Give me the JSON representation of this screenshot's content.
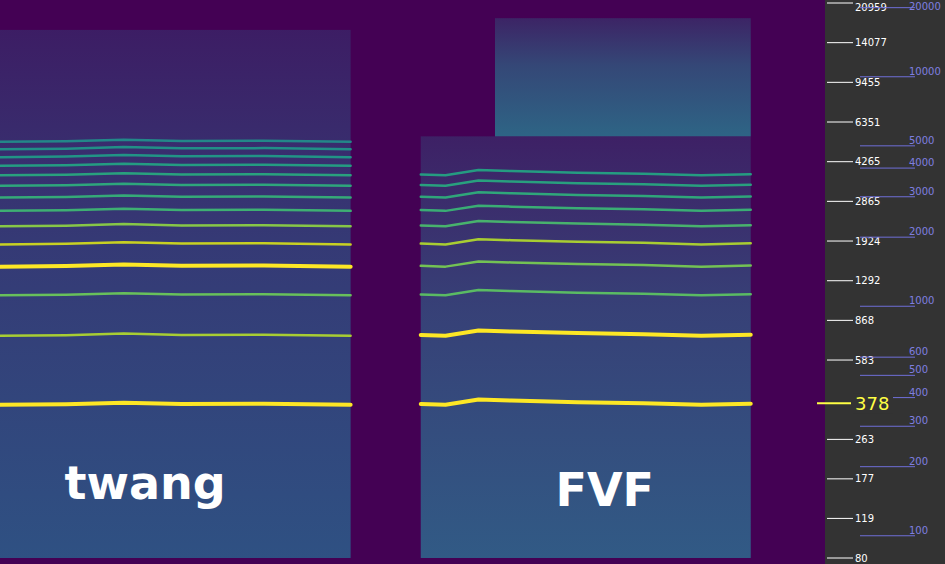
{
  "chart_data": {
    "type": "spectrogram",
    "log": "y",
    "tick_labels": "y",
    "xlim": [
      0,
      100
    ],
    "ylim": [
      80,
      20959
    ],
    "yticks": [
      80,
      119,
      177,
      263,
      583,
      868,
      1292,
      1924,
      2865,
      4265,
      6351,
      9455,
      14077,
      20959
    ],
    "y2lim": [
      80,
      20959
    ],
    "y2ticks": [
      100,
      200,
      300,
      400,
      500,
      600,
      1000,
      2000,
      3000,
      4000,
      5000,
      10000,
      20000
    ],
    "regions": [
      {
        "x": [
          0,
          42.5
        ],
        "y": [
          80,
          16000
        ],
        "color": "#2b5f8b"
      },
      {
        "x": [
          51,
          91
        ],
        "y": [
          80,
          5500
        ],
        "color": "#2e6a8e"
      },
      {
        "x": [
          60,
          91
        ],
        "y": [
          5500,
          18000
        ],
        "color": "#2a768e"
      }
    ],
    "series": [
      {
        "x": [
          0,
          8,
          15,
          22,
          32,
          42.5
        ],
        "values": [
          372,
          374,
          380,
          375,
          376,
          372
        ],
        "color": "#fde725"
      },
      {
        "x": [
          0,
          8,
          15,
          22,
          32,
          42.5
        ],
        "values": [
          744,
          748,
          760,
          750,
          752,
          744
        ],
        "color": "#b5de2b"
      },
      {
        "x": [
          0,
          8,
          15,
          22,
          32,
          42.5
        ],
        "values": [
          1116,
          1122,
          1140,
          1125,
          1128,
          1116
        ],
        "color": "#6ece58"
      },
      {
        "x": [
          0,
          8,
          15,
          22,
          32,
          42.5
        ],
        "values": [
          1488,
          1496,
          1520,
          1500,
          1504,
          1488
        ],
        "color": "#fde725"
      },
      {
        "x": [
          0,
          8,
          15,
          22,
          32,
          42.5
        ],
        "values": [
          1860,
          1870,
          1900,
          1875,
          1880,
          1860
        ],
        "color": "#d8e219"
      },
      {
        "x": [
          0,
          8,
          15,
          22,
          32,
          42.5
        ],
        "values": [
          2232,
          2244,
          2280,
          2250,
          2256,
          2232
        ],
        "color": "#90d743"
      },
      {
        "x": [
          0,
          8,
          15,
          22,
          32,
          42.5
        ],
        "values": [
          2604,
          2618,
          2660,
          2625,
          2632,
          2604
        ],
        "color": "#3fbc73"
      },
      {
        "x": [
          0,
          8,
          15,
          22,
          32,
          42.5
        ],
        "values": [
          2976,
          2992,
          3040,
          3000,
          3008,
          2976
        ],
        "color": "#35b779"
      },
      {
        "x": [
          0,
          8,
          15,
          22,
          32,
          42.5
        ],
        "values": [
          3348,
          3366,
          3420,
          3375,
          3384,
          3348
        ],
        "color": "#2db27d"
      },
      {
        "x": [
          0,
          8,
          15,
          22,
          32,
          42.5
        ],
        "values": [
          3720,
          3740,
          3800,
          3750,
          3760,
          3720
        ],
        "color": "#28ae80"
      },
      {
        "x": [
          0,
          8,
          15,
          22,
          32,
          42.5
        ],
        "values": [
          4092,
          4114,
          4180,
          4125,
          4136,
          4092
        ],
        "color": "#22a884"
      },
      {
        "x": [
          0,
          8,
          15,
          22,
          32,
          42.5
        ],
        "values": [
          4464,
          4488,
          4560,
          4500,
          4512,
          4464
        ],
        "color": "#1fa088"
      },
      {
        "x": [
          0,
          8,
          15,
          22,
          32,
          42.5
        ],
        "values": [
          4836,
          4862,
          4940,
          4875,
          4888,
          4836
        ],
        "color": "#1f9a8a"
      },
      {
        "x": [
          0,
          8,
          15,
          22,
          32,
          42.5
        ],
        "values": [
          5208,
          5236,
          5320,
          5250,
          5264,
          5208
        ],
        "color": "#21918c"
      },
      {
        "x": [
          51,
          54,
          58,
          62,
          70,
          78,
          85,
          91
        ],
        "values": [
          375,
          372,
          392,
          388,
          382,
          378,
          372,
          376
        ],
        "color": "#fde725"
      },
      {
        "x": [
          51,
          54,
          58,
          62,
          70,
          78,
          85,
          91
        ],
        "values": [
          750,
          744,
          784,
          776,
          764,
          756,
          744,
          752
        ],
        "color": "#fde725"
      },
      {
        "x": [
          51,
          54,
          58,
          62,
          70,
          78,
          85,
          91
        ],
        "values": [
          1125,
          1116,
          1176,
          1164,
          1146,
          1134,
          1116,
          1128
        ],
        "color": "#5ec962"
      },
      {
        "x": [
          51,
          54,
          58,
          62,
          70,
          78,
          85,
          91
        ],
        "values": [
          1500,
          1488,
          1568,
          1552,
          1528,
          1512,
          1488,
          1504
        ],
        "color": "#7ad151"
      },
      {
        "x": [
          51,
          54,
          58,
          62,
          70,
          78,
          85,
          91
        ],
        "values": [
          1875,
          1860,
          1960,
          1940,
          1910,
          1890,
          1860,
          1880
        ],
        "color": "#b5de2b"
      },
      {
        "x": [
          51,
          54,
          58,
          62,
          70,
          78,
          85,
          91
        ],
        "values": [
          2250,
          2232,
          2352,
          2328,
          2292,
          2268,
          2232,
          2256
        ],
        "color": "#4ac16d"
      },
      {
        "x": [
          51,
          54,
          58,
          62,
          70,
          78,
          85,
          91
        ],
        "values": [
          2625,
          2604,
          2744,
          2716,
          2674,
          2646,
          2604,
          2632
        ],
        "color": "#3bbb75"
      },
      {
        "x": [
          51,
          54,
          58,
          62,
          70,
          78,
          85,
          91
        ],
        "values": [
          3000,
          2976,
          3136,
          3104,
          3056,
          3024,
          2976,
          3008
        ],
        "color": "#2fb47c"
      },
      {
        "x": [
          51,
          54,
          58,
          62,
          70,
          78,
          85,
          91
        ],
        "values": [
          3375,
          3348,
          3528,
          3492,
          3438,
          3402,
          3348,
          3384
        ],
        "color": "#27ad81"
      },
      {
        "x": [
          51,
          54,
          58,
          62,
          70,
          78,
          85,
          91
        ],
        "values": [
          3750,
          3720,
          3920,
          3880,
          3820,
          3780,
          3720,
          3760
        ],
        "color": "#22a884"
      }
    ],
    "annotations": [
      {
        "text": "twang",
        "x": 17.6,
        "y": 170,
        "color": "#ffffff"
      },
      {
        "text": "FVF",
        "x": 73.3,
        "y": 158,
        "color": "#ffffff"
      },
      {
        "text": "378",
        "y": 378,
        "color": "#ffff44"
      }
    ]
  }
}
